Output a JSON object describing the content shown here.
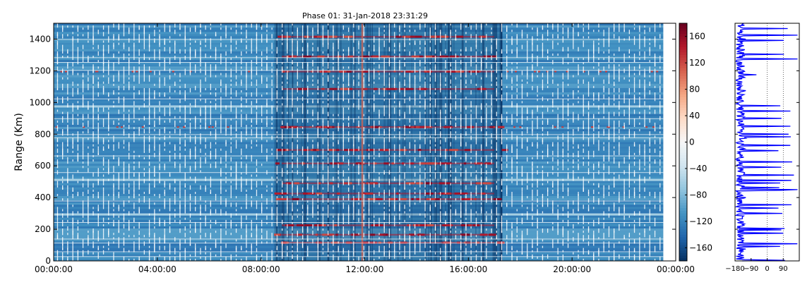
{
  "title": "Phase 01: 31-Jan-2018 23:31:29",
  "chart_data": [
    {
      "type": "heatmap",
      "title": "Phase 01: 31-Jan-2018 23:31:29",
      "xlabel": "",
      "ylabel": "Range (Km)",
      "x_ticks": [
        "00:00:00",
        "04:00:00",
        "08:00:00",
        "12:00:00",
        "16:00:00",
        "20:00:00",
        "00:00:00"
      ],
      "x_tick_hours": [
        0,
        4,
        8,
        12,
        16,
        20,
        24
      ],
      "xlim_hours": [
        0,
        24
      ],
      "data_extent_hours": [
        0,
        23.52
      ],
      "ylim": [
        0,
        1500
      ],
      "y_ticks": [
        0,
        200,
        400,
        600,
        800,
        1000,
        1200,
        1400
      ],
      "colormap": "RdBu_r",
      "colorbar": {
        "ticks": [
          160,
          120,
          80,
          40,
          0,
          -40,
          -80,
          -120,
          -160
        ],
        "range": [
          -180,
          180
        ]
      },
      "features": {
        "bright_vertical_line_hour": 11.9,
        "active_window_hours": [
          8.5,
          17.3
        ],
        "red_bands_km": [
          1415,
          1290,
          1195,
          1085,
          845,
          700,
          615,
          490,
          425,
          390,
          225,
          165,
          115
        ]
      }
    },
    {
      "type": "line",
      "title": "",
      "xlabel": "",
      "ylabel": "",
      "x_ticks": [
        "−180",
        "−90",
        "0",
        "90"
      ],
      "x_tick_values": [
        -180,
        -90,
        0,
        90
      ],
      "xlim": [
        -180,
        180
      ],
      "ylim": [
        0,
        1500
      ],
      "grid": "vertical dotted",
      "series": [
        {
          "color": "#0000ff",
          "ranges_km": [
            0,
            25,
            50,
            75,
            100,
            125,
            150,
            175,
            200,
            225,
            250,
            275,
            300,
            325,
            350,
            375,
            400,
            425,
            450,
            475,
            500,
            525,
            550,
            575,
            600,
            625,
            650,
            675,
            700,
            725,
            750,
            775,
            800,
            825,
            850,
            875,
            900,
            925,
            950,
            975,
            1000,
            1025,
            1050,
            1075,
            1100,
            1125,
            1150,
            1175,
            1200,
            1225,
            1250,
            1275,
            1300,
            1325,
            1350,
            1375,
            1400,
            1425,
            1450,
            1475,
            1500
          ],
          "phase_deg": [
            -140,
            -160,
            -150,
            -120,
            -165,
            -140,
            -150,
            90,
            -160,
            -130,
            -150,
            -140,
            85,
            -160,
            -150,
            -140,
            -120,
            -160,
            170,
            -150,
            -140,
            -160,
            -130,
            -150,
            -140,
            140,
            -160,
            -150,
            -130,
            -150,
            -160,
            -120,
            120,
            -150,
            130,
            -160,
            80,
            -140,
            -130,
            -150,
            -160,
            -140,
            -130,
            -120,
            -150,
            -160,
            -140,
            -60,
            -130,
            -150,
            -140,
            170,
            -140,
            -160,
            -150,
            -140,
            -120,
            170,
            -140,
            -150,
            -130
          ]
        }
      ]
    }
  ]
}
